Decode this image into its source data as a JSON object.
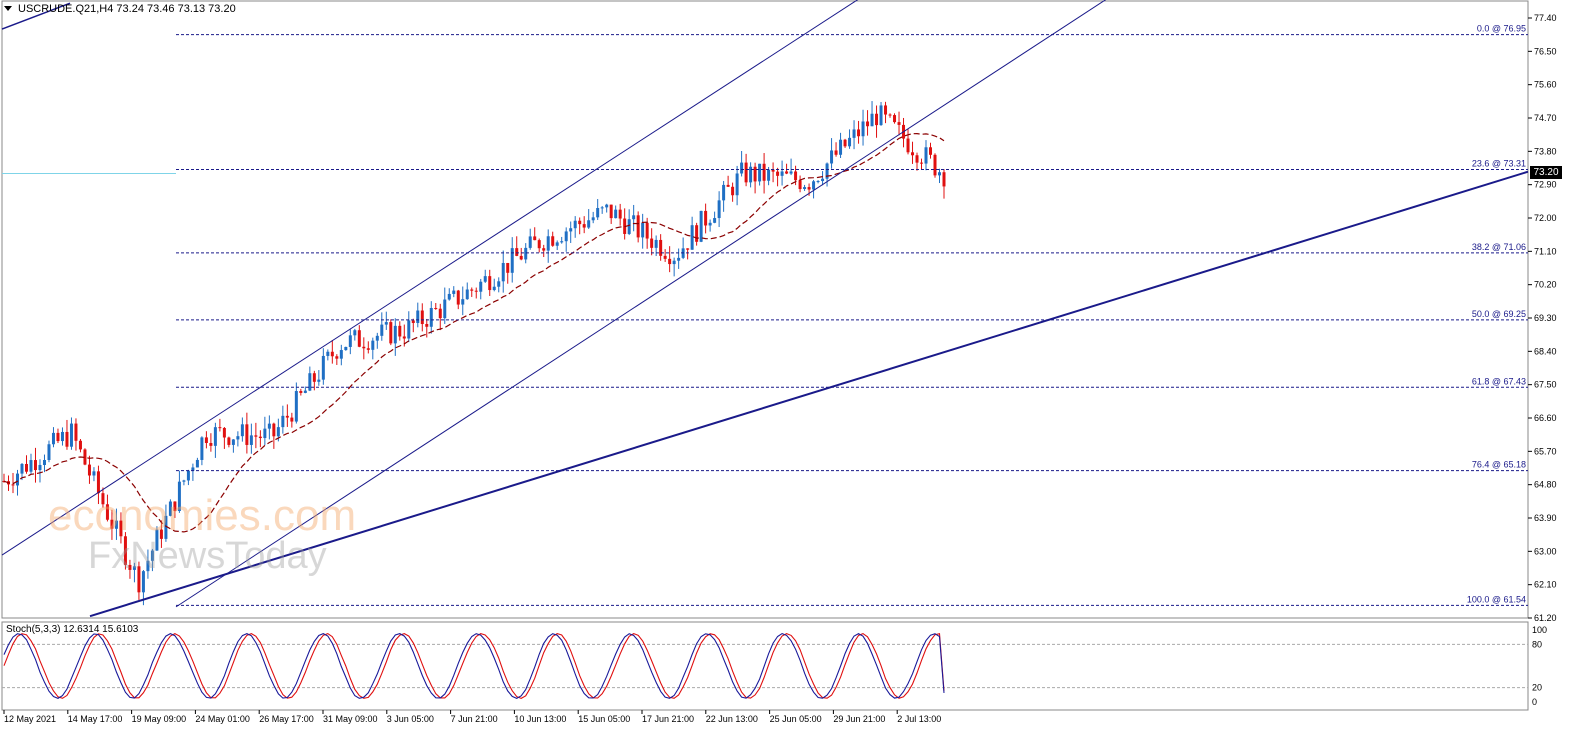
{
  "header": {
    "text": "USCRUDE.Q21,H4  73.24 73.46 73.13 73.20"
  },
  "current_price_label": "73.20",
  "stoch_header": "Stoch(5,3,3) 12.6314 15.6103",
  "watermark": {
    "line1": "economies.com",
    "line2": "FxNewsToday"
  },
  "colors": {
    "bull": "#1f6fc4",
    "bear": "#e01010",
    "ma": "#8b0000",
    "channel": "#1a1a8a",
    "fib": "#1a1a8a",
    "stoch_main": "#1a1a9a",
    "stoch_signal": "#e01010"
  },
  "chart_data": {
    "type": "candlestick",
    "symbol": "USCRUDE.Q21",
    "timeframe": "H4",
    "ohlc_header": {
      "open": 73.24,
      "high": 73.46,
      "low": 73.13,
      "close": 73.2
    },
    "y_axis": {
      "ticks": [
        "77.40",
        "76.50",
        "75.60",
        "74.70",
        "73.80",
        "72.90",
        "72.00",
        "71.10",
        "70.20",
        "69.30",
        "68.40",
        "67.50",
        "66.60",
        "65.70",
        "64.80",
        "63.90",
        "63.00",
        "62.10",
        "61.20"
      ],
      "ylim": [
        61.2,
        77.4
      ]
    },
    "x_axis": {
      "ticks": [
        "12 May 2021",
        "14 May 17:00",
        "19 May 09:00",
        "24 May 01:00",
        "26 May 17:00",
        "31 May 09:00",
        "3 Jun 05:00",
        "7 Jun 21:00",
        "10 Jun 13:00",
        "15 Jun 05:00",
        "17 Jun 21:00",
        "22 Jun 13:00",
        "25 Jun 05:00",
        "29 Jun 21:00",
        "2 Jul 13:00"
      ]
    },
    "fibonacci_retracement": [
      {
        "label": "0.0 @ 76.95",
        "value": 76.95
      },
      {
        "label": "23.6 @ 73.31",
        "value": 73.31
      },
      {
        "label": "38.2 @ 71.06",
        "value": 71.06
      },
      {
        "label": "50.0 @ 69.25",
        "value": 69.25
      },
      {
        "label": "61.8 @ 67.43",
        "value": 67.43
      },
      {
        "label": "76.4 @ 65.18",
        "value": 65.18
      },
      {
        "label": "100.0 @ 61.54",
        "value": 61.54
      }
    ],
    "key_points": [
      {
        "x": "12 May 2021",
        "close": 64.9
      },
      {
        "x": "14 May 17:00",
        "close": 66.2
      },
      {
        "x": "19 May 09:00",
        "close": 62.2
      },
      {
        "x": "24 May 01:00",
        "close": 66.2
      },
      {
        "x": "26 May 17:00",
        "close": 66.1
      },
      {
        "x": "31 May 09:00",
        "close": 68.6
      },
      {
        "x": "3 Jun 05:00",
        "close": 69.0
      },
      {
        "x": "7 Jun 21:00",
        "close": 70.1
      },
      {
        "x": "10 Jun 13:00",
        "close": 71.4
      },
      {
        "x": "15 Jun 05:00",
        "close": 72.2
      },
      {
        "x": "17 Jun 21:00",
        "close": 71.0
      },
      {
        "x": "22 Jun 13:00",
        "close": 73.2
      },
      {
        "x": "25 Jun 05:00",
        "close": 73.0
      },
      {
        "x": "29 Jun 21:00",
        "close": 74.8
      },
      {
        "x": "2 Jul 13:00",
        "close": 73.2
      }
    ],
    "stochastic": {
      "params": "Stoch(5,3,3)",
      "main": 12.6314,
      "signal": 15.6103,
      "levels": [
        "100",
        "80",
        "20",
        "0"
      ]
    }
  }
}
